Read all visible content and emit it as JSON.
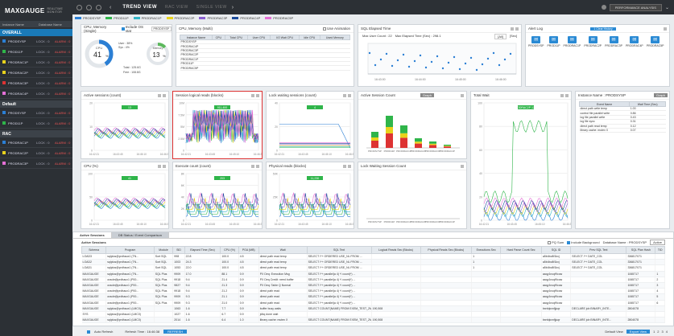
{
  "app": {
    "logo": "MAXGAUGE",
    "subtitle": "REALTIME MONITOR",
    "view_title": "TREND VIEW",
    "views": [
      "RAC VIEW",
      "SINGLE VIEW"
    ],
    "user_button": "PERFORMANCE ANALYSIS"
  },
  "instances": [
    {
      "name": "PRODSYSP",
      "color": "#2b7fd4"
    },
    {
      "name": "PROD11P",
      "color": "#2fb54a"
    },
    {
      "name": "PRODRAC1P",
      "color": "#33b5c8"
    },
    {
      "name": "PRODRAC2P",
      "color": "#e8d21c"
    },
    {
      "name": "PRODRAC3P",
      "color": "#8a5fd1"
    },
    {
      "name": "PRODRAC4P",
      "color": "#1a4a9a"
    },
    {
      "name": "PRODRAC5P",
      "color": "#e46fd6"
    }
  ],
  "sidebar": {
    "header": [
      "Instance Name",
      "Database Name"
    ],
    "groups": [
      {
        "title": "OVERALL",
        "rows": [
          {
            "name": "PRODSYSP",
            "color": "#2b7fd4",
            "lock": "LOCK : 0",
            "alarm": "ALARM : 0"
          },
          {
            "name": "PROD11P",
            "color": "#2fb54a",
            "lock": "LOCK : 0",
            "alarm": "ALARM : 0"
          },
          {
            "name": "PRODRAC1P",
            "color": "#e8d21c",
            "lock": "LOCK : 0",
            "alarm": "ALARM : 0"
          },
          {
            "name": "PRODRAC2P",
            "color": "#e8d21c",
            "lock": "LOCK : 0",
            "alarm": "ALARM : 0"
          },
          {
            "name": "PRODRAC3P",
            "color": "#d33",
            "lock": "LOCK : 0",
            "alarm": "ALARM : 0"
          },
          {
            "name": "PRODRAC4P",
            "color": "#e46fd6",
            "lock": "LOCK : 0",
            "alarm": "ALARM : 0"
          }
        ]
      },
      {
        "title": "Default",
        "rows": [
          {
            "name": "PRODSYSP",
            "color": "#2b7fd4",
            "lock": "LOCK : 0",
            "alarm": "ALARM : 0"
          },
          {
            "name": "PROD11P",
            "color": "#2fb54a",
            "lock": "LOCK : 0",
            "alarm": "ALARM : 0"
          }
        ]
      },
      {
        "title": "RAC",
        "rows": [
          {
            "name": "PRODRAC1P",
            "color": "#2b7fd4",
            "lock": "LOCK : 0",
            "alarm": "ALARM : 0"
          },
          {
            "name": "PRODRAC2P",
            "color": "#e8d21c",
            "lock": "LOCK : 0",
            "alarm": "ALARM : 0"
          },
          {
            "name": "PRODRAC3P",
            "color": "#e46fd6",
            "lock": "LOCK : 0",
            "alarm": "ALARM : 0"
          }
        ]
      }
    ]
  },
  "cpu_single": {
    "title": "CPU, Memory (Single)",
    "include_os": "Include OS stat",
    "instance": "PRODSYSP",
    "user": "User : 38%",
    "sys": "Sys : 4%",
    "cpu_label": "CPU",
    "cpu_value": "41",
    "cpu_pct": 41,
    "mem_label": "Memory",
    "mem_value": "13",
    "mem_pct": 13,
    "total": "Total : 125.6G",
    "free": "Free : 108.8G"
  },
  "cpu_multi": {
    "title": "CPU, Memory (Multi)",
    "use_animation": "Use Animation",
    "headers": [
      "Instance Name",
      "CPU",
      "Total CPU",
      "User CPU",
      "I/O Wait CPU",
      "Idle CPU",
      "Used Memory"
    ],
    "rows": [
      [
        "PRODSYSP",
        "",
        "",
        "",
        "",
        "",
        ""
      ],
      [
        "PRODRAC4P",
        "",
        "",
        "",
        "",
        "",
        ""
      ],
      [
        "PRODRAC3P",
        "",
        "",
        "",
        "",
        "",
        ""
      ],
      [
        "PRODRAC2P",
        "",
        "",
        "",
        "",
        "",
        ""
      ],
      [
        "PRODRAC1P",
        "",
        "",
        "",
        "",
        "",
        ""
      ],
      [
        "PROD11P",
        "",
        "",
        "",
        "",
        "",
        ""
      ],
      [
        "PRODRAC5P",
        "",
        "",
        "",
        "",
        "",
        ""
      ]
    ]
  },
  "sql_elapsed": {
    "title": "SQL Elapsed Time",
    "max_user": "Max User Count : 22",
    "max_elapsed": "Max Elapsed Time (Sec) : 298.1",
    "period": "[All]",
    "unit": "[Sec]",
    "times": [
      "16:43:00",
      "16:44:00",
      "16:45:00",
      "16:46:00"
    ]
  },
  "alert_log": {
    "title": "Alert Log",
    "button": "1 Clear History",
    "items": [
      "PRODSYSP",
      "PROD11P",
      "PRODRAC1P",
      "PRODRAC2P",
      "PRODRAC3P",
      "PRODRAC4P",
      "PRODRAC5P"
    ]
  },
  "charts": {
    "active_sessions": {
      "title": "Active sessions (count)",
      "badge": "13",
      "ylabels": [
        "20",
        "10",
        "0"
      ],
      "times": [
        "16:42:21",
        "16:43:45",
        "16:45:10",
        "16:46:38"
      ]
    },
    "logical_reads": {
      "title": "Session logical reads (blocks)",
      "badge": "911,400",
      "ylabels": [
        "10M",
        "7.5M",
        "5M",
        "2.5M",
        "0"
      ],
      "times": [
        "16:42:21",
        "16:43:45",
        "16:45:10",
        "16:46:38"
      ]
    },
    "lock_waiting": {
      "title": "Lock waiting sessions (count)",
      "badge": "4",
      "ylabels": [
        "40",
        "20",
        "0"
      ],
      "times": [
        "16:42:21",
        "16:43:45",
        "16:45:10",
        "16:46:38"
      ]
    },
    "cpu_pct": {
      "title": "CPU (%)",
      "badge": "41",
      "ylabels": [
        "100",
        "50",
        "0"
      ],
      "times": [
        "16:42:21",
        "16:43:45",
        "16:45:10",
        "16:46:38"
      ]
    },
    "execute_count": {
      "title": "Execute count (count)",
      "badge": "203",
      "ylabels": [
        "8K",
        "6K",
        "4K",
        "2K",
        "0"
      ],
      "times": [
        "16:42:21",
        "16:43:45",
        "16:45:10",
        "16:46:38"
      ]
    },
    "physical_reads": {
      "title": "Physical reads (blocks)",
      "badge": "11,230",
      "ylabels": [
        "50K",
        "25K",
        "0"
      ],
      "times": [
        "16:42:21",
        "16:43:45",
        "16:45:10",
        "16:46:38"
      ]
    },
    "total_wait": {
      "title": "Total Wait",
      "badge": "PRODRAC2P 12.34",
      "ylabels": [
        "100",
        "80",
        "60",
        "40",
        "20",
        "0"
      ],
      "times": [
        "16:42:21",
        "16:43:45",
        "16:45:10",
        "16:46:38"
      ]
    }
  },
  "active_session_count": {
    "title": "Active Session Count",
    "graph_button": "Graph",
    "unit": "[Sec]"
  },
  "lock_waiting_count": {
    "title": "Lock Waiting Session Count",
    "unit": "[Sec]"
  },
  "wait_events": {
    "instance_label": "Instance Name : PRODSYSP",
    "graph_button": "Graph",
    "headers": [
      "Event Name",
      "Wait Time (Sec)"
    ],
    "rows": [
      [
        "direct path write temp",
        "1.00"
      ],
      [
        "control file parallel write",
        "0.86"
      ],
      [
        "log file parallel write",
        "0.43"
      ],
      [
        "log file sync",
        "0.31"
      ],
      [
        "direct path read temp",
        "0.12"
      ],
      [
        "library cache: mutex X",
        "0.07"
      ]
    ]
  },
  "bottom": {
    "tabs": [
      "Active Sessions",
      "DB Status / Event Comparison"
    ],
    "section_title": "Active Sessions",
    "pq_sum": "PQ Sum",
    "include_background": "Include Background",
    "db_instance": "Database Name : PRODSYSP",
    "state": "Active",
    "headers": [
      "Schema",
      "Program",
      "Module",
      "SID",
      "Elapsed Time (Sec)",
      "CPU (%)",
      "PGA (MB)",
      "Wait",
      "SQL Text",
      "Logical Reads Sec (Blocks)",
      "Physical Reads Sec (Blocks)",
      "Executions Sec",
      "Hard Parse Count Sec",
      "SQL ID",
      "Prev SQL Text",
      "SQL Plan Hash",
      "TID"
    ],
    "rows": [
      [
        "LOAD3",
        "sqlplus@prdhaux1 (TN...",
        "Sort SQL",
        "998",
        "22.8",
        "100.0",
        "4.5",
        "direct path read temp",
        "SELECT /*+ ORDERED USE_NL FROM ...",
        "",
        "",
        "1",
        "",
        "a5b4bo8f1kxj",
        "SELECT /*+ DATE_COL",
        "336817071",
        ""
      ],
      [
        "LOAD2",
        "sqlplus@prdhaux1 (TN...",
        "Sort SQL",
        "1003",
        "24.3",
        "100.0",
        "4.5",
        "direct path read temp",
        "SELECT /*+ ORDERED USE_NL FROM ...",
        "",
        "",
        "1",
        "",
        "a5b4bo8f1kxj",
        "SELECT /*+ DATE_COL",
        "336817071",
        ""
      ],
      [
        "LOAD1",
        "sqlplus@prdhaux1 (TN...",
        "Sort SQL",
        "1053",
        "22.0",
        "100.0",
        "4.5",
        "direct path read temp",
        "SELECT /*+ ORDERED USE_NL FROM ...",
        "",
        "",
        "1",
        "",
        "a5b4bo8f1kxj",
        "SELECT /*+ DATE_COL",
        "336817071",
        ""
      ],
      [
        "MAXGAUGE",
        "sqlplus@prdhaux1 (TN...",
        "SQL Plus",
        "9909",
        "17.0",
        "88.1",
        "0.9",
        "PX Deq: Execution Msg",
        "SELECT /*+ parallel(a 4) */ count(*) ...",
        "",
        "",
        "",
        "",
        "aaqy1ncqf9cuw",
        "",
        "1065717",
        "1"
      ],
      [
        "MAXGAUGE",
        "oracle@prdhaux1 (P00...",
        "SQL Plus",
        "9918",
        "9.4",
        "21.4",
        "0.9",
        "PX Deq Credit: need buffer",
        "SELECT /*+ parallel(a 4) */ count(*) ...",
        "",
        "",
        "",
        "",
        "aaqy1ncqf9cuw",
        "",
        "1065717",
        "2"
      ],
      [
        "MAXGAUGE",
        "oracle@prdhaux1 (P00...",
        "SQL Plus",
        "9827",
        "9.4",
        "21.3",
        "0.9",
        "PX Deq: Table Q Normal",
        "SELECT /*+ parallel(a 4) */ count(*) ...",
        "",
        "",
        "",
        "",
        "aaqy1ncqf9cuw",
        "",
        "1065717",
        "3"
      ],
      [
        "MAXGAUGE",
        "oracle@prdhaux1 (P00...",
        "SQL Plus",
        "9918",
        "9.4",
        "21.2",
        "0.9",
        "direct path read",
        "SELECT /*+ parallel(a 4) */ count(*) ...",
        "",
        "",
        "",
        "",
        "aaqy1ncqf9cuw",
        "",
        "1065717",
        "4"
      ],
      [
        "MAXGAUGE",
        "oracle@prdhaux1 (P00...",
        "SQL Plus",
        "9909",
        "9.3",
        "21.1",
        "0.9",
        "direct path read",
        "SELECT /*+ parallel(a 4) */ count(*) ...",
        "",
        "",
        "",
        "",
        "aaqy1ncqf9cuw",
        "",
        "1065717",
        "5"
      ],
      [
        "MAXGAUGE",
        "oracle@prdhaux1 (P00...",
        "SQL Plus",
        "9909",
        "9.3",
        "21.0",
        "0.9",
        "direct path read",
        "SELECT /*+ parallel(a 4) */ count(*) ...",
        "",
        "",
        "",
        "",
        "aaqy1ncqf9cuw",
        "",
        "1065717",
        "6"
      ],
      [
        "MAXGAUGE",
        "sqlplus@prdhaux1 (LMC0)",
        "",
        "1063",
        "1.6",
        "7.7",
        "0.9",
        "buffer busy waits",
        "SELECT COUNT(NAME) FROM EXEM_TEST_2MP A WHERE ...",
        "190,508",
        "",
        "",
        "",
        "bxnfqkxnfjjuqr",
        "DECLARE job BINARY_INTE...",
        "2804078",
        ""
      ],
      [
        "SYS",
        "sqlplus@prdhaux1 (LMC0)",
        "",
        "1027",
        "1.6",
        "6.7",
        "0.9",
        "jdbq done wait",
        "",
        "",
        "",
        "",
        "",
        "",
        "",
        "",
        ""
      ],
      [
        "MAXGAUGE",
        "sqlplus@prdhaux1 (LMC0)",
        "",
        "2014",
        "1.6",
        "6.4",
        "1.0",
        "library cache: mutex X",
        "SELECT COUNT(NAME) FROM EXEM_TEST_2MP A WHERE ...",
        "190,508",
        "",
        "",
        "",
        "bxnfqkxnfjjuqr",
        "DECLARE job BINARY_INTE...",
        "2804078",
        ""
      ]
    ]
  },
  "footer": {
    "auto_refresh": "Auto Refresh",
    "refresh_time": "Refresh Time : 16:46:38",
    "refresh_button": "REFRESH",
    "default_view": "Default View",
    "export_view": "Export View",
    "pages": [
      "1",
      "2",
      "3",
      "4"
    ]
  }
}
